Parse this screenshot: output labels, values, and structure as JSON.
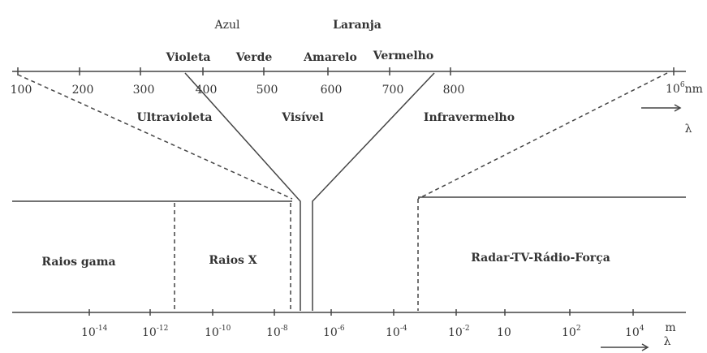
{
  "colors": {
    "azul": "Azul",
    "laranja": "Laranja",
    "violeta": "Violeta",
    "verde": "Verde",
    "amarelo": "Amarelo",
    "vermelho": "Vermelho"
  },
  "top_scale": {
    "ticks": [
      "100",
      "200",
      "300",
      "400",
      "500",
      "600",
      "700",
      "800"
    ],
    "end": {
      "base": "10",
      "exp": "6",
      "unit": "nm"
    },
    "lambda": "λ"
  },
  "regions": {
    "ultravioleta": "Ultravioleta",
    "visivel": "Visível",
    "infravermelho": "Infravermelho",
    "raios_gama": "Raios gama",
    "raios_x": "Raios X",
    "radar": "Radar-TV-Rádio-Força"
  },
  "bottom_scale": {
    "ticks": [
      {
        "base": "10",
        "exp": "-14"
      },
      {
        "base": "10",
        "exp": "-12"
      },
      {
        "base": "10",
        "exp": "-10"
      },
      {
        "base": "10",
        "exp": "-8"
      },
      {
        "base": "10",
        "exp": "-6"
      },
      {
        "base": "10",
        "exp": "-4"
      },
      {
        "base": "10",
        "exp": "-2"
      },
      {
        "base": "10",
        "exp": ""
      },
      {
        "base": "10",
        "exp": "2"
      },
      {
        "base": "10",
        "exp": "4"
      }
    ],
    "unit": "m",
    "lambda": "λ"
  }
}
